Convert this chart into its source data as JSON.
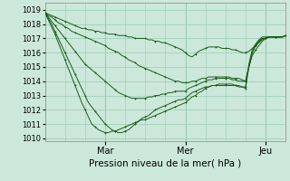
{
  "background_color": "#cce8da",
  "grid_color": "#99ccb3",
  "line_color": "#1a5c1a",
  "xlim": [
    0,
    72
  ],
  "ylim": [
    1009.8,
    1019.5
  ],
  "yticks": [
    1010,
    1011,
    1012,
    1013,
    1014,
    1015,
    1016,
    1017,
    1018,
    1019
  ],
  "xtick_positions": [
    18,
    42,
    66
  ],
  "xtick_labels": [
    "Mar",
    "Mer",
    "Jeu"
  ],
  "xlabel": "Pression niveau de la mer( hPa )",
  "series": [
    {
      "x": [
        0,
        1,
        2,
        3,
        4,
        5,
        6,
        7,
        8,
        9,
        10,
        11,
        12,
        13,
        14,
        15,
        16,
        17,
        18,
        19,
        20,
        21,
        22,
        23,
        24,
        25,
        26,
        27,
        28,
        29,
        30,
        31,
        32,
        33,
        34,
        35,
        36,
        37,
        38,
        39,
        40,
        41,
        42,
        43,
        44,
        45,
        46,
        47,
        48,
        49,
        50,
        51,
        52,
        53,
        54,
        55,
        56,
        57,
        58,
        59,
        60,
        61,
        62,
        63,
        64,
        65,
        66,
        67,
        68,
        69,
        70,
        71,
        72
      ],
      "y": [
        1018.8,
        1018.7,
        1018.6,
        1018.5,
        1018.4,
        1018.3,
        1018.2,
        1018.1,
        1018.0,
        1017.9,
        1017.8,
        1017.7,
        1017.7,
        1017.6,
        1017.6,
        1017.5,
        1017.5,
        1017.4,
        1017.4,
        1017.3,
        1017.3,
        1017.3,
        1017.2,
        1017.2,
        1017.2,
        1017.1,
        1017.1,
        1017.0,
        1017.0,
        1017.0,
        1017.0,
        1016.9,
        1016.9,
        1016.8,
        1016.8,
        1016.7,
        1016.7,
        1016.6,
        1016.5,
        1016.4,
        1016.3,
        1016.2,
        1016.0,
        1015.8,
        1015.7,
        1015.9,
        1016.1,
        1016.2,
        1016.3,
        1016.4,
        1016.4,
        1016.4,
        1016.4,
        1016.3,
        1016.3,
        1016.3,
        1016.2,
        1016.2,
        1016.1,
        1016.0,
        1016.0,
        1016.1,
        1016.3,
        1016.5,
        1016.7,
        1016.9,
        1017.0,
        1017.1,
        1017.1,
        1017.1,
        1017.1,
        1017.1,
        1017.2
      ]
    },
    {
      "x": [
        0,
        1,
        2,
        3,
        4,
        5,
        6,
        7,
        8,
        9,
        10,
        11,
        12,
        13,
        14,
        15,
        16,
        17,
        18,
        19,
        20,
        21,
        22,
        23,
        24,
        25,
        26,
        27,
        28,
        29,
        30,
        31,
        32,
        33,
        34,
        35,
        36,
        37,
        38,
        39,
        40,
        41,
        42,
        43,
        44,
        45,
        46,
        47,
        48,
        49,
        50,
        51,
        52,
        53,
        54,
        55,
        56,
        57,
        58,
        59,
        60,
        61,
        62,
        63,
        64,
        65,
        66,
        67,
        68,
        69,
        70,
        71,
        72
      ],
      "y": [
        1018.8,
        1018.6,
        1018.5,
        1018.3,
        1018.1,
        1018.0,
        1017.8,
        1017.7,
        1017.5,
        1017.4,
        1017.3,
        1017.2,
        1017.1,
        1017.0,
        1016.9,
        1016.8,
        1016.7,
        1016.6,
        1016.5,
        1016.3,
        1016.2,
        1016.1,
        1016.0,
        1015.8,
        1015.7,
        1015.5,
        1015.4,
        1015.3,
        1015.1,
        1015.0,
        1014.9,
        1014.8,
        1014.7,
        1014.6,
        1014.5,
        1014.4,
        1014.3,
        1014.2,
        1014.1,
        1014.0,
        1014.0,
        1013.9,
        1013.9,
        1013.9,
        1014.0,
        1014.0,
        1014.1,
        1014.2,
        1014.2,
        1014.3,
        1014.3,
        1014.3,
        1014.3,
        1014.3,
        1014.3,
        1014.3,
        1014.2,
        1014.2,
        1014.2,
        1014.1,
        1014.0,
        1015.0,
        1016.0,
        1016.5,
        1016.8,
        1017.0,
        1017.0,
        1017.1,
        1017.1,
        1017.1,
        1017.1,
        1017.1,
        1017.2
      ]
    },
    {
      "x": [
        0,
        1,
        2,
        3,
        4,
        5,
        6,
        7,
        8,
        9,
        10,
        11,
        12,
        13,
        14,
        15,
        16,
        17,
        18,
        19,
        20,
        21,
        22,
        23,
        24,
        25,
        26,
        27,
        28,
        29,
        30,
        31,
        32,
        33,
        34,
        35,
        36,
        37,
        38,
        39,
        40,
        41,
        42,
        43,
        44,
        45,
        46,
        47,
        48,
        49,
        50,
        51,
        52,
        53,
        54,
        55,
        56,
        57,
        58,
        59,
        60,
        61,
        62,
        63,
        64,
        65,
        66,
        67,
        68,
        69,
        70,
        71,
        72
      ],
      "y": [
        1018.8,
        1018.5,
        1018.2,
        1017.9,
        1017.6,
        1017.3,
        1017.0,
        1016.7,
        1016.4,
        1016.1,
        1015.8,
        1015.5,
        1015.2,
        1015.0,
        1014.8,
        1014.6,
        1014.4,
        1014.2,
        1014.0,
        1013.8,
        1013.6,
        1013.4,
        1013.2,
        1013.1,
        1013.0,
        1012.9,
        1012.8,
        1012.8,
        1012.8,
        1012.8,
        1012.8,
        1012.9,
        1012.9,
        1013.0,
        1013.0,
        1013.1,
        1013.1,
        1013.2,
        1013.2,
        1013.3,
        1013.3,
        1013.3,
        1013.3,
        1013.5,
        1013.6,
        1013.7,
        1013.8,
        1013.9,
        1014.0,
        1014.1,
        1014.1,
        1014.2,
        1014.2,
        1014.2,
        1014.2,
        1014.2,
        1014.1,
        1014.1,
        1014.0,
        1014.0,
        1014.0,
        1015.0,
        1015.8,
        1016.2,
        1016.5,
        1016.8,
        1017.0,
        1017.1,
        1017.1,
        1017.1,
        1017.1,
        1017.1,
        1017.2
      ]
    },
    {
      "x": [
        0,
        1,
        2,
        3,
        4,
        5,
        6,
        7,
        8,
        9,
        10,
        11,
        12,
        13,
        14,
        15,
        16,
        17,
        18,
        19,
        20,
        21,
        22,
        23,
        24,
        25,
        26,
        27,
        28,
        29,
        30,
        31,
        32,
        33,
        34,
        35,
        36,
        37,
        38,
        39,
        40,
        41,
        42,
        43,
        44,
        45,
        46,
        47,
        48,
        49,
        50,
        51,
        52,
        53,
        54,
        55,
        56,
        57,
        58,
        59,
        60,
        61,
        62,
        63,
        64,
        65,
        66,
        67,
        68,
        69,
        70,
        71,
        72
      ],
      "y": [
        1018.8,
        1018.4,
        1018.0,
        1017.5,
        1017.0,
        1016.5,
        1016.0,
        1015.5,
        1015.0,
        1014.5,
        1014.0,
        1013.5,
        1013.0,
        1012.5,
        1012.2,
        1011.9,
        1011.6,
        1011.3,
        1011.0,
        1010.8,
        1010.6,
        1010.5,
        1010.4,
        1010.4,
        1010.5,
        1010.6,
        1010.8,
        1011.0,
        1011.2,
        1011.4,
        1011.5,
        1011.6,
        1011.8,
        1012.0,
        1012.1,
        1012.2,
        1012.3,
        1012.4,
        1012.5,
        1012.6,
        1012.7,
        1012.7,
        1012.8,
        1013.0,
        1013.2,
        1013.3,
        1013.4,
        1013.5,
        1013.6,
        1013.6,
        1013.7,
        1013.7,
        1013.7,
        1013.7,
        1013.7,
        1013.7,
        1013.7,
        1013.7,
        1013.6,
        1013.6,
        1013.5,
        1015.0,
        1016.0,
        1016.5,
        1016.8,
        1017.0,
        1017.0,
        1017.1,
        1017.1,
        1017.1,
        1017.1,
        1017.1,
        1017.2
      ]
    },
    {
      "x": [
        0,
        1,
        2,
        3,
        4,
        5,
        6,
        7,
        8,
        9,
        10,
        11,
        12,
        13,
        14,
        15,
        16,
        17,
        18,
        19,
        20,
        21,
        22,
        23,
        24,
        25,
        26,
        27,
        28,
        29,
        30,
        31,
        32,
        33,
        34,
        35,
        36,
        37,
        38,
        39,
        40,
        41,
        42,
        43,
        44,
        45,
        46,
        47,
        48,
        49,
        50,
        51,
        52,
        53,
        54,
        55,
        56,
        57,
        58,
        59,
        60,
        61,
        62,
        63,
        64,
        65,
        66,
        67,
        68,
        69,
        70,
        71,
        72
      ],
      "y": [
        1018.8,
        1018.3,
        1017.8,
        1017.3,
        1016.7,
        1016.1,
        1015.5,
        1014.9,
        1014.3,
        1013.7,
        1013.1,
        1012.5,
        1012.0,
        1011.5,
        1011.0,
        1010.8,
        1010.6,
        1010.5,
        1010.4,
        1010.4,
        1010.5,
        1010.5,
        1010.6,
        1010.7,
        1010.8,
        1010.9,
        1011.0,
        1011.1,
        1011.2,
        1011.3,
        1011.3,
        1011.4,
        1011.5,
        1011.6,
        1011.7,
        1011.8,
        1011.9,
        1012.0,
        1012.1,
        1012.2,
        1012.3,
        1012.4,
        1012.5,
        1012.7,
        1012.9,
        1013.0,
        1013.2,
        1013.3,
        1013.5,
        1013.6,
        1013.7,
        1013.7,
        1013.8,
        1013.8,
        1013.8,
        1013.8,
        1013.8,
        1013.7,
        1013.7,
        1013.6,
        1013.6,
        1015.2,
        1016.2,
        1016.6,
        1016.9,
        1017.1,
        1017.1,
        1017.1,
        1017.1,
        1017.1,
        1017.1,
        1017.1,
        1017.2
      ]
    }
  ]
}
